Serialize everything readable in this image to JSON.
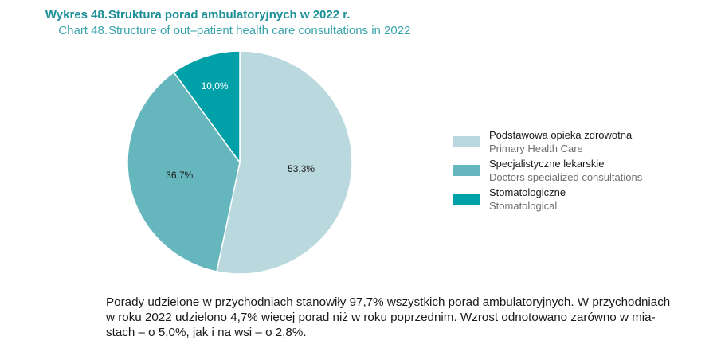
{
  "header": {
    "number_pl": "Wykres 48.",
    "title_pl": "Struktura porad ambulatoryjnych w 2022 r.",
    "number_en": "Chart 48.",
    "title_en": "Structure of out–patient health care consultations in 2022"
  },
  "chart_data": {
    "type": "pie",
    "slices": [
      {
        "label_pl": "Podstawowa opieka zdrowotna",
        "label_en": "Primary Health Care",
        "value": 53.3,
        "value_label": "53,3%",
        "color": "#b9d9de"
      },
      {
        "label_pl": "Specjalistyczne lekarskie",
        "label_en": "Doctors  specialized consultations",
        "value": 36.7,
        "value_label": "36,7%",
        "color": "#66b7bd"
      },
      {
        "label_pl": "Stomatologiczne",
        "label_en": "Stomatological",
        "value": 10.0,
        "value_label": "10,0%",
        "color": "#00a0a8"
      }
    ],
    "legend_position": "right"
  },
  "note": {
    "line1": "Porady udzielone w przychodniach stanowiły 97,7% wszystkich porad ambulatoryjnych. W przychodniach",
    "line2": "w roku 2022 udzielono 4,7% więcej porad niż w roku poprzednim. Wzrost odnotowano zarówno w mia-",
    "line3": "stach – o 5,0%, jak i na wsi – o 2,8%."
  }
}
